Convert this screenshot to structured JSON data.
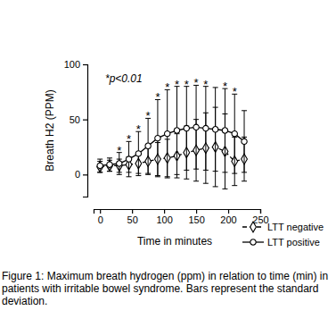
{
  "chart_data": {
    "type": "line",
    "y_label": "Breath H2 (PPM)",
    "x_label": "Time in minutes",
    "annotation": "*p<0.01",
    "caption": "Figure 1:  Maximum breath hydrogen (ppm) in relation to time (min) in patients with irritable bowel syndrome. Bars represent the standard deviation.",
    "x": [
      0,
      15,
      30,
      45,
      60,
      75,
      90,
      105,
      120,
      135,
      150,
      165,
      180,
      195,
      210,
      225
    ],
    "series": [
      {
        "name": "LTT negative",
        "color": "#000000",
        "marker": "diamond",
        "line_style": "dashed",
        "values": [
          7,
          8,
          8,
          9,
          10,
          12,
          14,
          15,
          17,
          20,
          22,
          24,
          25,
          21,
          12,
          14
        ],
        "errors": [
          5,
          5,
          6,
          7,
          9,
          12,
          15,
          17,
          20,
          24,
          28,
          32,
          36,
          34,
          22,
          20
        ]
      },
      {
        "name": "LTT positive",
        "color": "#000000",
        "marker": "circle",
        "line_style": "solid",
        "values": [
          8,
          9,
          10,
          14,
          19,
          26,
          33,
          37,
          40,
          42,
          43,
          42,
          41,
          40,
          37,
          30
        ],
        "errors": [
          6,
          6,
          10,
          16,
          20,
          25,
          35,
          40,
          40,
          38,
          38,
          38,
          38,
          38,
          36,
          28
        ]
      }
    ],
    "significance": {
      "label": "*",
      "x": [
        30,
        45,
        60,
        75,
        90,
        105,
        120,
        135,
        150,
        165,
        195,
        210
      ]
    },
    "xlim": [
      -10,
      250
    ],
    "xticks": [
      0,
      50,
      100,
      150,
      200,
      250
    ],
    "ylim": [
      -20,
      100
    ],
    "yticks": [
      0,
      50,
      100
    ],
    "grid": false,
    "legend": "bottom-right"
  }
}
